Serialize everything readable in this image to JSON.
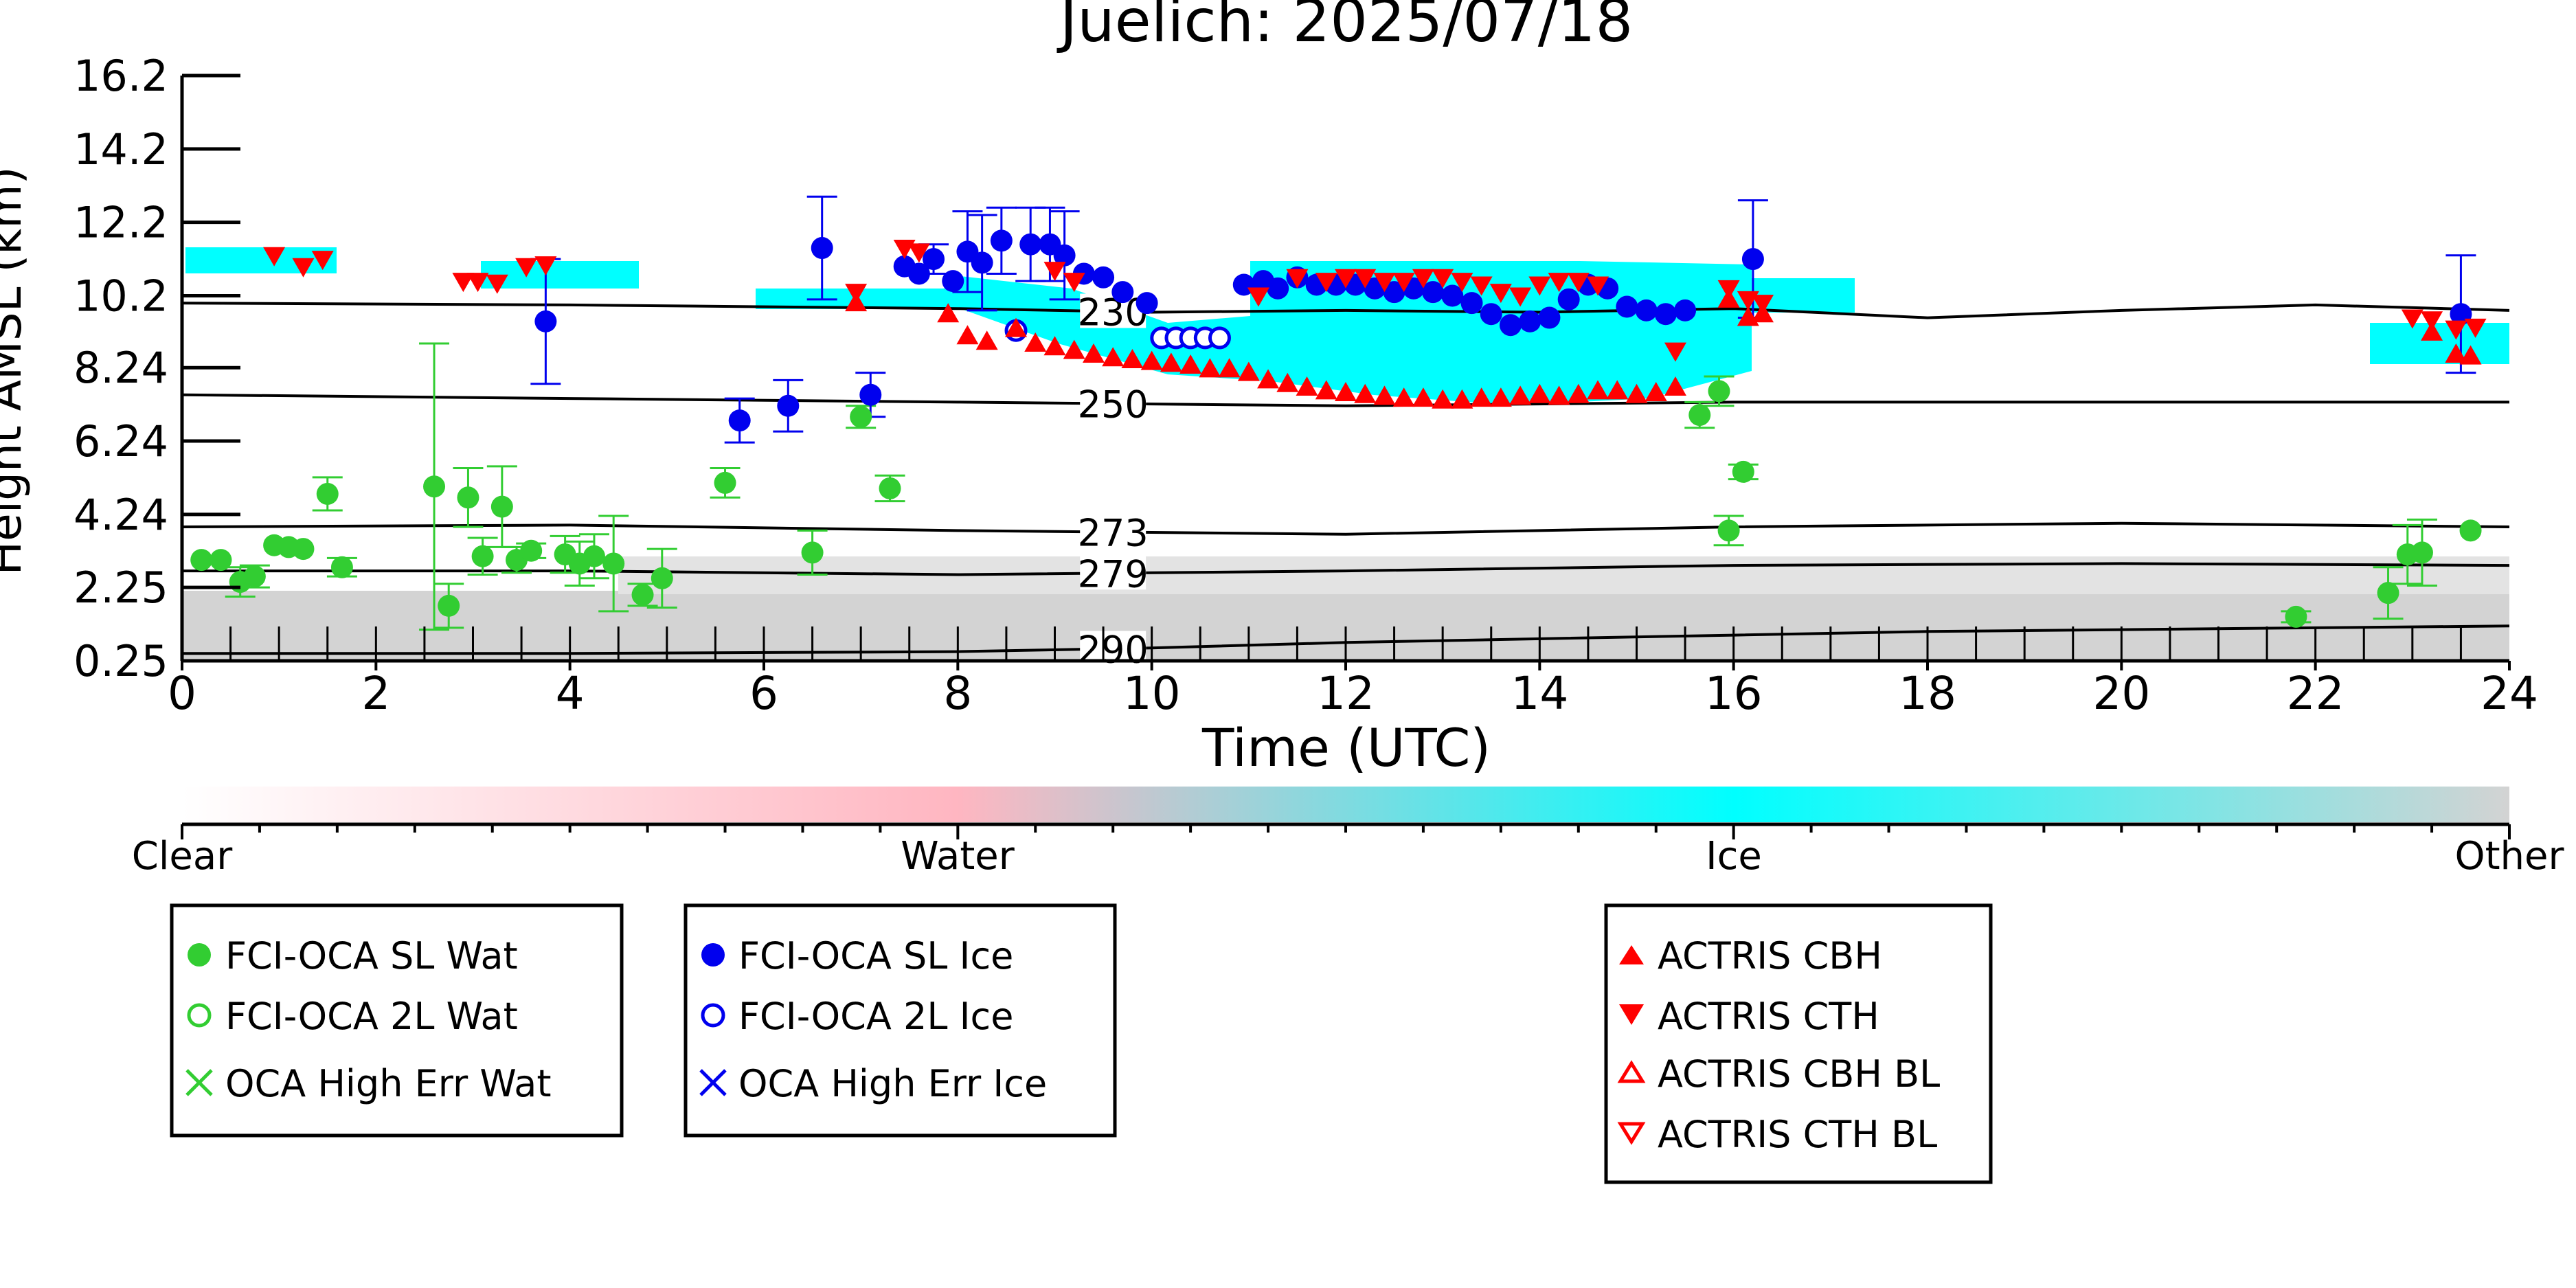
{
  "chart_data": {
    "type": "scatter",
    "title": "Juelich: 2025/07/18",
    "xlabel": "Time (UTC)",
    "ylabel": "Height AMSL (km)",
    "xlim": [
      0,
      24
    ],
    "ylim": [
      0.25,
      16.2
    ],
    "x_ticks": [
      "0",
      "2",
      "4",
      "6",
      "8",
      "10",
      "12",
      "14",
      "16",
      "18",
      "20",
      "22",
      "24"
    ],
    "y_ticks": [
      "0.25",
      "2.25",
      "4.24",
      "6.24",
      "8.24",
      "10.2",
      "12.2",
      "14.2",
      "16.2"
    ],
    "colors": {
      "water": "#32cd32",
      "ice": "#0000ee",
      "actris": "#ff0000",
      "cloud_ice": "#00ffff",
      "other": "#d3d3d3",
      "liquid": "#ffb6c1"
    },
    "colorbar": {
      "labels": [
        "Clear",
        "Water",
        "Ice",
        "Other"
      ],
      "colors": [
        "#ffffff",
        "#ffb6c1",
        "#00ffff",
        "#d3d3d3"
      ]
    },
    "isotherms": [
      {
        "label": "230",
        "label_x": 9.6,
        "x": [
          0,
          4,
          8,
          10,
          12,
          14,
          16,
          18,
          20,
          22,
          24
        ],
        "y": [
          10.0,
          9.95,
          9.85,
          9.75,
          9.8,
          9.75,
          9.85,
          9.6,
          9.8,
          9.95,
          9.8
        ]
      },
      {
        "label": "250",
        "label_x": 9.6,
        "x": [
          0,
          4,
          8,
          12,
          16,
          20,
          24
        ],
        "y": [
          7.5,
          7.4,
          7.3,
          7.2,
          7.3,
          7.3,
          7.3
        ]
      },
      {
        "label": "273",
        "label_x": 9.6,
        "x": [
          0,
          4,
          8,
          12,
          16,
          20,
          24
        ],
        "y": [
          3.9,
          3.95,
          3.8,
          3.7,
          3.9,
          4.0,
          3.9
        ]
      },
      {
        "label": "279",
        "label_x": 9.6,
        "x": [
          0,
          4,
          8,
          12,
          16,
          20,
          24
        ],
        "y": [
          2.7,
          2.7,
          2.6,
          2.7,
          2.85,
          2.9,
          2.85
        ]
      },
      {
        "label": "290",
        "label_x": 9.6,
        "x": [
          0,
          4,
          8,
          10,
          12,
          14,
          16,
          18,
          20,
          22,
          24
        ],
        "y": [
          0.45,
          0.45,
          0.5,
          0.6,
          0.75,
          0.85,
          0.95,
          1.05,
          1.1,
          1.15,
          1.2
        ]
      }
    ],
    "series": [
      {
        "name": "FCI-OCA SL Wat",
        "marker": "filled-circle",
        "color": "#32cd32",
        "points": [
          {
            "x": 0.2,
            "y": 3.0
          },
          {
            "x": 0.4,
            "y": 3.0
          },
          {
            "x": 0.6,
            "y": 2.4,
            "err": 0.4
          },
          {
            "x": 0.75,
            "y": 2.55,
            "err": 0.3
          },
          {
            "x": 0.95,
            "y": 3.4
          },
          {
            "x": 1.1,
            "y": 3.35
          },
          {
            "x": 1.25,
            "y": 3.3
          },
          {
            "x": 1.5,
            "y": 4.8,
            "err": 0.45
          },
          {
            "x": 1.65,
            "y": 2.8,
            "err": 0.25
          },
          {
            "x": 2.6,
            "y": 5.0,
            "err": 3.9
          },
          {
            "x": 2.75,
            "y": 1.75,
            "err": 0.6
          },
          {
            "x": 2.95,
            "y": 4.7,
            "err": 0.8
          },
          {
            "x": 3.1,
            "y": 3.1,
            "err": 0.5
          },
          {
            "x": 3.3,
            "y": 4.45,
            "err": 1.1
          },
          {
            "x": 3.45,
            "y": 3.0,
            "err": 0.35
          },
          {
            "x": 3.6,
            "y": 3.25,
            "err": 0.2
          },
          {
            "x": 3.95,
            "y": 3.15,
            "err": 0.5
          },
          {
            "x": 4.1,
            "y": 2.9,
            "err": 0.6
          },
          {
            "x": 4.25,
            "y": 3.1,
            "err": 0.6
          },
          {
            "x": 4.45,
            "y": 2.9,
            "err": 1.3
          },
          {
            "x": 4.75,
            "y": 2.05,
            "err": 0.3
          },
          {
            "x": 4.95,
            "y": 2.5,
            "err": 0.8
          },
          {
            "x": 5.6,
            "y": 5.1,
            "err": 0.4
          },
          {
            "x": 6.5,
            "y": 3.2,
            "err": 0.6
          },
          {
            "x": 7.0,
            "y": 6.9,
            "err": 0.3
          },
          {
            "x": 7.3,
            "y": 4.95,
            "err": 0.35
          },
          {
            "x": 15.65,
            "y": 6.95,
            "err": 0.35
          },
          {
            "x": 15.85,
            "y": 7.6,
            "err": 0.4
          },
          {
            "x": 15.95,
            "y": 3.8,
            "err": 0.4
          },
          {
            "x": 16.1,
            "y": 5.4,
            "err": 0.2
          },
          {
            "x": 21.8,
            "y": 1.45,
            "err": 0.15
          },
          {
            "x": 22.75,
            "y": 2.1,
            "err": 0.7
          },
          {
            "x": 22.95,
            "y": 3.15,
            "err": 0.8
          },
          {
            "x": 23.1,
            "y": 3.2,
            "err": 0.9
          },
          {
            "x": 23.6,
            "y": 3.8
          }
        ]
      },
      {
        "name": "FCI-OCA 2L Wat",
        "marker": "open-circle",
        "color": "#32cd32",
        "points": []
      },
      {
        "name": "OCA High Err Wat",
        "marker": "x",
        "color": "#32cd32",
        "points": []
      },
      {
        "name": "FCI-OCA SL Ice",
        "marker": "filled-circle",
        "color": "#0000ee",
        "points": [
          {
            "x": 3.75,
            "y": 9.5,
            "err": 1.7
          },
          {
            "x": 5.75,
            "y": 6.8,
            "err": 0.6
          },
          {
            "x": 6.25,
            "y": 7.2,
            "err": 0.7
          },
          {
            "x": 6.6,
            "y": 11.5,
            "err": 1.4
          },
          {
            "x": 7.1,
            "y": 7.5,
            "err": 0.6
          },
          {
            "x": 7.45,
            "y": 11.0
          },
          {
            "x": 7.6,
            "y": 10.8
          },
          {
            "x": 7.75,
            "y": 11.2,
            "err": 0.4
          },
          {
            "x": 7.95,
            "y": 10.6
          },
          {
            "x": 8.1,
            "y": 11.4,
            "err": 1.1
          },
          {
            "x": 8.25,
            "y": 11.1,
            "err": 1.3
          },
          {
            "x": 8.45,
            "y": 11.7,
            "err": 0.9
          },
          {
            "x": 8.75,
            "y": 11.6,
            "err": 1.0
          },
          {
            "x": 8.95,
            "y": 11.6,
            "err": 1.0
          },
          {
            "x": 9.1,
            "y": 11.3,
            "err": 1.2
          },
          {
            "x": 9.3,
            "y": 10.8
          },
          {
            "x": 9.5,
            "y": 10.7
          },
          {
            "x": 9.7,
            "y": 10.3
          },
          {
            "x": 9.95,
            "y": 10.0
          },
          {
            "x": 10.95,
            "y": 10.5
          },
          {
            "x": 11.15,
            "y": 10.6
          },
          {
            "x": 11.3,
            "y": 10.4
          },
          {
            "x": 11.5,
            "y": 10.7
          },
          {
            "x": 11.7,
            "y": 10.5
          },
          {
            "x": 11.9,
            "y": 10.5
          },
          {
            "x": 12.1,
            "y": 10.5
          },
          {
            "x": 12.3,
            "y": 10.4
          },
          {
            "x": 12.5,
            "y": 10.3
          },
          {
            "x": 12.7,
            "y": 10.4
          },
          {
            "x": 12.9,
            "y": 10.3
          },
          {
            "x": 13.1,
            "y": 10.2
          },
          {
            "x": 13.3,
            "y": 10.0
          },
          {
            "x": 13.5,
            "y": 9.7
          },
          {
            "x": 13.7,
            "y": 9.4
          },
          {
            "x": 13.9,
            "y": 9.5
          },
          {
            "x": 14.1,
            "y": 9.6
          },
          {
            "x": 14.3,
            "y": 10.1
          },
          {
            "x": 14.5,
            "y": 10.5
          },
          {
            "x": 14.7,
            "y": 10.4
          },
          {
            "x": 14.9,
            "y": 9.9
          },
          {
            "x": 15.1,
            "y": 9.8
          },
          {
            "x": 15.3,
            "y": 9.7
          },
          {
            "x": 15.5,
            "y": 9.8
          },
          {
            "x": 16.2,
            "y": 11.2,
            "err": 1.6
          },
          {
            "x": 23.5,
            "y": 9.7,
            "err": 1.6
          }
        ]
      },
      {
        "name": "FCI-OCA 2L Ice",
        "marker": "open-circle",
        "color": "#0000ee",
        "points": [
          {
            "x": 8.6,
            "y": 9.25
          },
          {
            "x": 10.1,
            "y": 9.05
          },
          {
            "x": 10.25,
            "y": 9.05
          },
          {
            "x": 10.4,
            "y": 9.05
          },
          {
            "x": 10.55,
            "y": 9.05
          },
          {
            "x": 10.7,
            "y": 9.05
          }
        ]
      },
      {
        "name": "OCA High Err Ice",
        "marker": "x",
        "color": "#0000ee",
        "points": []
      },
      {
        "name": "ACTRIS CBH",
        "marker": "triangle-up",
        "color": "#ff0000",
        "points": [
          {
            "x": 6.95,
            "y": 10.0
          },
          {
            "x": 7.9,
            "y": 9.7
          },
          {
            "x": 8.1,
            "y": 9.1
          },
          {
            "x": 8.3,
            "y": 8.95
          },
          {
            "x": 8.6,
            "y": 9.3
          },
          {
            "x": 8.8,
            "y": 8.9
          },
          {
            "x": 9.0,
            "y": 8.8
          },
          {
            "x": 9.2,
            "y": 8.7
          },
          {
            "x": 9.4,
            "y": 8.6
          },
          {
            "x": 9.6,
            "y": 8.5
          },
          {
            "x": 9.8,
            "y": 8.45
          },
          {
            "x": 10.0,
            "y": 8.4
          },
          {
            "x": 10.2,
            "y": 8.35
          },
          {
            "x": 10.4,
            "y": 8.3
          },
          {
            "x": 10.6,
            "y": 8.2
          },
          {
            "x": 10.8,
            "y": 8.2
          },
          {
            "x": 11.0,
            "y": 8.1
          },
          {
            "x": 11.2,
            "y": 7.9
          },
          {
            "x": 11.4,
            "y": 7.8
          },
          {
            "x": 11.6,
            "y": 7.7
          },
          {
            "x": 11.8,
            "y": 7.6
          },
          {
            "x": 12.0,
            "y": 7.55
          },
          {
            "x": 12.2,
            "y": 7.5
          },
          {
            "x": 12.4,
            "y": 7.45
          },
          {
            "x": 12.6,
            "y": 7.4
          },
          {
            "x": 12.8,
            "y": 7.4
          },
          {
            "x": 13.0,
            "y": 7.35
          },
          {
            "x": 13.2,
            "y": 7.35
          },
          {
            "x": 13.4,
            "y": 7.4
          },
          {
            "x": 13.6,
            "y": 7.4
          },
          {
            "x": 13.8,
            "y": 7.45
          },
          {
            "x": 14.0,
            "y": 7.5
          },
          {
            "x": 14.2,
            "y": 7.45
          },
          {
            "x": 14.4,
            "y": 7.5
          },
          {
            "x": 14.6,
            "y": 7.6
          },
          {
            "x": 14.8,
            "y": 7.6
          },
          {
            "x": 15.0,
            "y": 7.5
          },
          {
            "x": 15.2,
            "y": 7.55
          },
          {
            "x": 15.4,
            "y": 7.7
          },
          {
            "x": 15.95,
            "y": 10.1
          },
          {
            "x": 16.15,
            "y": 9.6
          },
          {
            "x": 16.3,
            "y": 9.7
          },
          {
            "x": 23.2,
            "y": 9.2
          },
          {
            "x": 23.45,
            "y": 8.6
          },
          {
            "x": 23.6,
            "y": 8.55
          }
        ]
      },
      {
        "name": "ACTRIS CTH",
        "marker": "triangle-down",
        "color": "#ff0000",
        "points": [
          {
            "x": 0.95,
            "y": 11.3
          },
          {
            "x": 1.25,
            "y": 11.0
          },
          {
            "x": 1.45,
            "y": 11.2
          },
          {
            "x": 2.9,
            "y": 10.6
          },
          {
            "x": 3.05,
            "y": 10.6
          },
          {
            "x": 3.25,
            "y": 10.55
          },
          {
            "x": 3.55,
            "y": 11.0
          },
          {
            "x": 3.75,
            "y": 11.05
          },
          {
            "x": 6.95,
            "y": 10.3
          },
          {
            "x": 7.45,
            "y": 11.5
          },
          {
            "x": 7.6,
            "y": 11.4
          },
          {
            "x": 9.0,
            "y": 10.9
          },
          {
            "x": 9.2,
            "y": 10.6
          },
          {
            "x": 11.1,
            "y": 10.2
          },
          {
            "x": 11.5,
            "y": 10.7
          },
          {
            "x": 11.8,
            "y": 10.6
          },
          {
            "x": 12.0,
            "y": 10.7
          },
          {
            "x": 12.2,
            "y": 10.7
          },
          {
            "x": 12.4,
            "y": 10.6
          },
          {
            "x": 12.6,
            "y": 10.6
          },
          {
            "x": 12.8,
            "y": 10.7
          },
          {
            "x": 13.0,
            "y": 10.7
          },
          {
            "x": 13.2,
            "y": 10.6
          },
          {
            "x": 13.4,
            "y": 10.5
          },
          {
            "x": 13.6,
            "y": 10.3
          },
          {
            "x": 13.8,
            "y": 10.2
          },
          {
            "x": 14.0,
            "y": 10.5
          },
          {
            "x": 14.2,
            "y": 10.6
          },
          {
            "x": 14.4,
            "y": 10.6
          },
          {
            "x": 14.6,
            "y": 10.5
          },
          {
            "x": 15.4,
            "y": 8.7
          },
          {
            "x": 15.95,
            "y": 10.4
          },
          {
            "x": 16.15,
            "y": 10.1
          },
          {
            "x": 16.3,
            "y": 10.0
          },
          {
            "x": 23.0,
            "y": 9.6
          },
          {
            "x": 23.2,
            "y": 9.55
          },
          {
            "x": 23.45,
            "y": 9.3
          },
          {
            "x": 23.65,
            "y": 9.35
          }
        ]
      },
      {
        "name": "ACTRIS CBH BL",
        "marker": "open-triangle-up",
        "color": "#ff0000",
        "points": []
      },
      {
        "name": "ACTRIS CTH BL",
        "marker": "open-triangle-down",
        "color": "#ff0000",
        "points": []
      }
    ]
  }
}
